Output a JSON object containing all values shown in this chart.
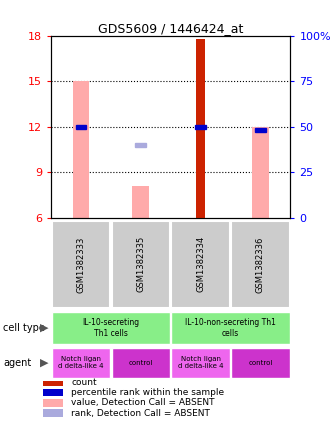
{
  "title": "GDS5609 / 1446424_at",
  "samples": [
    "GSM1382333",
    "GSM1382335",
    "GSM1382334",
    "GSM1382336"
  ],
  "ylim_left": [
    6,
    18
  ],
  "ylim_right": [
    0,
    100
  ],
  "yticks_left": [
    6,
    9,
    12,
    15,
    18
  ],
  "yticks_right": [
    0,
    25,
    50,
    75,
    100
  ],
  "ytick_labels_right": [
    "0",
    "25",
    "50",
    "75",
    "100%"
  ],
  "bar_width": 0.28,
  "count_bars": {
    "values": [
      null,
      null,
      17.8,
      null
    ],
    "color": "#cc2200"
  },
  "absent_value_bars": {
    "values": [
      15.0,
      8.1,
      null,
      12.0
    ],
    "color": "#ffaaaa"
  },
  "rank_absent_squares": {
    "values": [
      null,
      10.8,
      null,
      null
    ],
    "color": "#aaaadd"
  },
  "percentile_rank_squares": {
    "values": [
      12.0,
      null,
      12.0,
      11.8
    ],
    "color": "#0000cc"
  },
  "legend_items": [
    {
      "color": "#cc2200",
      "label": "count"
    },
    {
      "color": "#0000cc",
      "label": "percentile rank within the sample"
    },
    {
      "color": "#ffaaaa",
      "label": "value, Detection Call = ABSENT"
    },
    {
      "color": "#aaaadd",
      "label": "rank, Detection Call = ABSENT"
    }
  ],
  "background_color": "#ffffff",
  "sample_box_color": "#cccccc",
  "agent_colors": [
    "#ee66ee",
    "#cc33cc",
    "#ee66ee",
    "#cc33cc"
  ],
  "agent_labels": [
    "Notch ligan\nd delta-like 4",
    "control",
    "Notch ligan\nd delta-like 4",
    "control"
  ],
  "cell_type_labels": [
    "IL-10-secreting\nTh1 cells",
    "IL-10-non-secreting Th1\ncells"
  ],
  "cell_type_color": "#88ee88"
}
